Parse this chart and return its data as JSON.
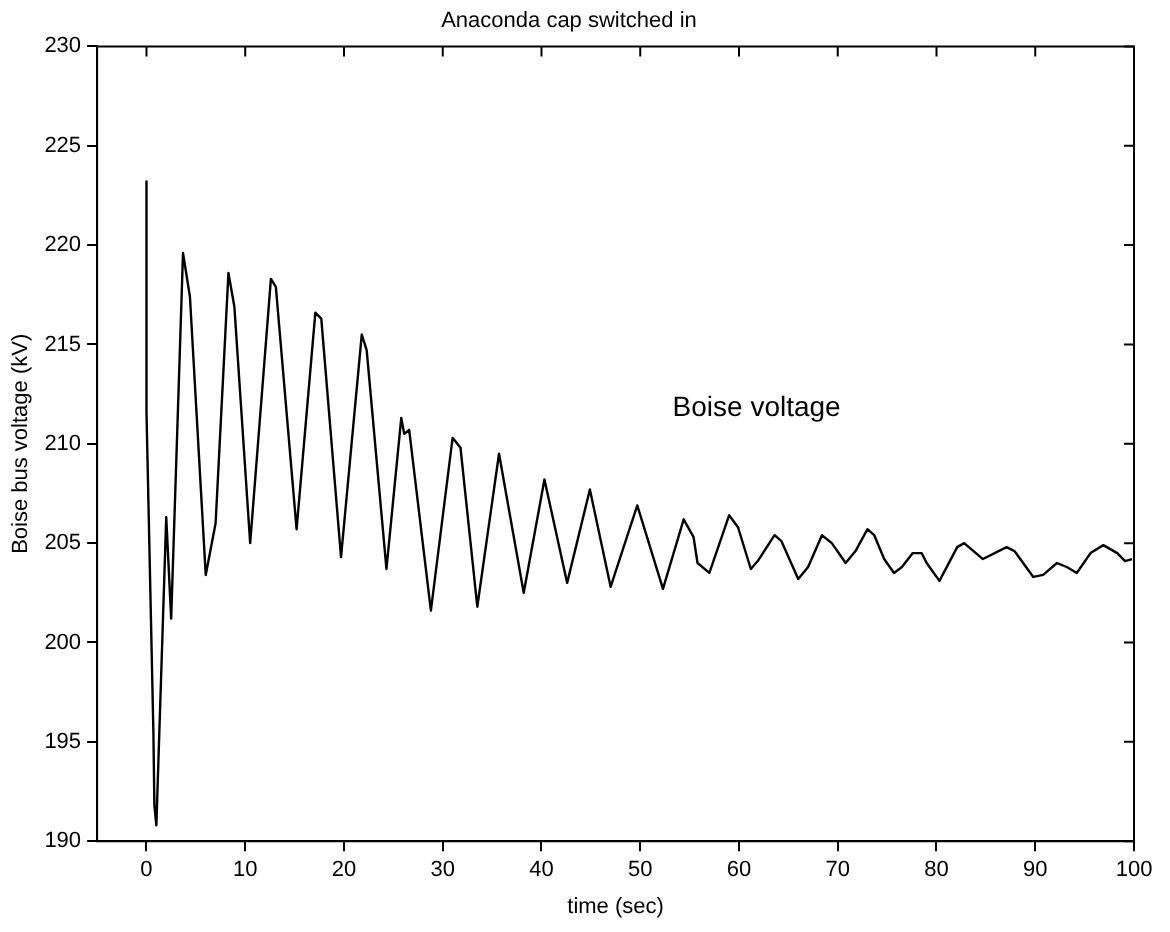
{
  "chart_data": {
    "type": "line",
    "title": "Anaconda cap switched in",
    "xlabel": "time (sec)",
    "ylabel": "Boise bus voltage (kV)",
    "xlim": [
      -5,
      100
    ],
    "xticks": [
      0,
      10,
      20,
      30,
      40,
      50,
      60,
      70,
      80,
      90,
      100
    ],
    "ylim": [
      190,
      230
    ],
    "yticks": [
      190,
      195,
      200,
      205,
      210,
      215,
      220,
      225,
      230
    ],
    "grid": false,
    "legend": false,
    "marker": "none",
    "line_style": "solid",
    "annotations": [
      "Boise voltage"
    ],
    "series": [
      {
        "color": "#000000",
        "x": [
          0,
          0,
          0.7,
          0.8,
          1.0,
          2.0,
          2.5,
          3.7,
          4.4,
          6.0,
          7.0,
          8.3,
          8.9,
          10.5,
          12.6,
          13.1,
          15.2,
          17.1,
          17.7,
          19.7,
          21.8,
          22.3,
          24.3,
          25.8,
          26.1,
          26.6,
          28.8,
          31.0,
          31.8,
          33.5,
          35.7,
          38.2,
          40.3,
          42.6,
          44.9,
          47.0,
          49.7,
          52.3,
          54.4,
          55.4,
          55.8,
          57.0,
          59.0,
          59.9,
          61.2,
          61.9,
          63.6,
          64.3,
          66.0,
          67.0,
          68.4,
          69.4,
          70.8,
          71.8,
          73.0,
          73.7,
          74.7,
          75.7,
          76.5,
          77.6,
          78.5,
          79.0,
          80.3,
          82.1,
          82.8,
          84.7,
          87.1,
          87.9,
          89.8,
          90.8,
          92.2,
          93.2,
          94.2,
          95.6,
          96.9,
          98.3,
          99.1,
          99.8
        ],
        "values": [
          223.2,
          211.6,
          195.5,
          191.8,
          190.8,
          206.3,
          201.2,
          219.6,
          217.4,
          203.4,
          206,
          218.6,
          216.9,
          205,
          218.3,
          217.9,
          205.7,
          216.6,
          216.3,
          204.3,
          215.5,
          214.7,
          203.7,
          211.3,
          210.5,
          210.7,
          201.6,
          210.3,
          209.8,
          201.8,
          209.5,
          202.5,
          208.2,
          203,
          207.7,
          202.8,
          206.9,
          202.7,
          206.2,
          205.3,
          204,
          203.5,
          206.4,
          205.8,
          203.7,
          204.1,
          205.4,
          205.1,
          203.2,
          203.8,
          205.4,
          205,
          204,
          204.6,
          205.7,
          205.4,
          204.2,
          203.5,
          203.8,
          204.5,
          204.5,
          204,
          203.1,
          204.8,
          205,
          204.2,
          204.8,
          204.6,
          203.3,
          203.4,
          204,
          203.8,
          203.5,
          204.5,
          204.9,
          204.5,
          204.1,
          204.2
        ]
      }
    ]
  }
}
